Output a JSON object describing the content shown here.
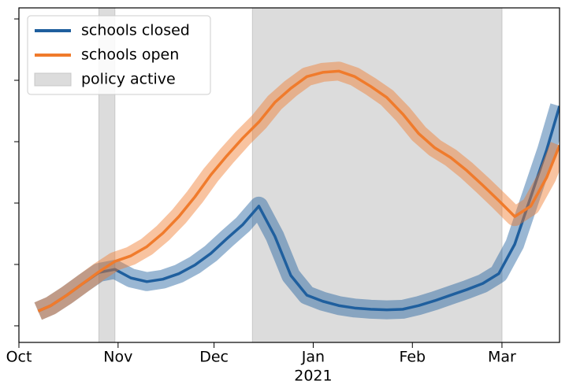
{
  "chart_data": {
    "type": "line",
    "x": [
      6,
      10,
      15,
      20,
      25,
      30,
      35,
      40,
      45,
      50,
      55,
      60,
      65,
      70,
      75,
      80,
      85,
      90,
      95,
      100,
      105,
      110,
      115,
      120,
      125,
      130,
      135,
      140,
      145,
      150,
      155,
      160,
      165,
      169
    ],
    "series": [
      {
        "name": "schools closed",
        "color": "#1f5f9e",
        "values": [
          0.24,
          0.33,
          0.5,
          0.69,
          0.87,
          0.92,
          0.78,
          0.72,
          0.76,
          0.85,
          0.99,
          1.18,
          1.42,
          1.65,
          1.95,
          1.46,
          0.82,
          0.5,
          0.4,
          0.33,
          0.29,
          0.27,
          0.26,
          0.27,
          0.33,
          0.41,
          0.5,
          0.59,
          0.69,
          0.85,
          1.33,
          2.1,
          2.87,
          3.58
        ]
      },
      {
        "name": "schools open",
        "color": "#f07b2c",
        "values": [
          0.24,
          0.33,
          0.5,
          0.69,
          0.88,
          1.05,
          1.14,
          1.29,
          1.51,
          1.78,
          2.1,
          2.46,
          2.77,
          3.06,
          3.32,
          3.64,
          3.87,
          4.06,
          4.13,
          4.15,
          4.06,
          3.9,
          3.72,
          3.45,
          3.13,
          2.9,
          2.74,
          2.53,
          2.29,
          2.04,
          1.78,
          1.95,
          2.42,
          2.94
        ]
      }
    ],
    "spans": {
      "name": "policy active",
      "color": "#dcdcdc",
      "ranges": [
        [
          25,
          30
        ],
        [
          73,
          151
        ]
      ]
    },
    "xlim": [
      0,
      169
    ],
    "xticks": [
      {
        "value": 0,
        "label": "Oct"
      },
      {
        "value": 31,
        "label": "Nov"
      },
      {
        "value": 61,
        "label": "Dec"
      },
      {
        "value": 92,
        "label": "Jan"
      },
      {
        "value": 123,
        "label": "Feb"
      },
      {
        "value": 151,
        "label": "Mar"
      }
    ],
    "year_label": {
      "value": 92,
      "label": "2021"
    },
    "ylim": [
      -0.27,
      5.18
    ],
    "yticks": [
      0,
      1,
      2,
      3,
      4,
      5
    ],
    "legend": "upper left"
  }
}
